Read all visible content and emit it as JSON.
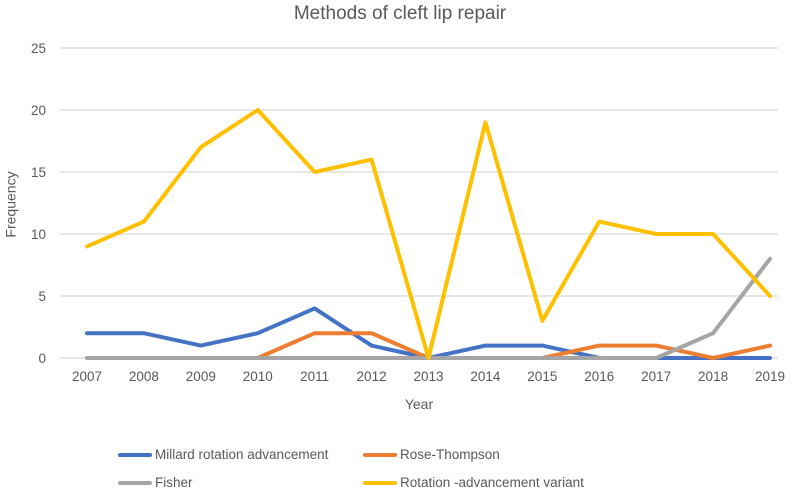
{
  "chart_data": {
    "type": "line",
    "title": "Methods of cleft lip repair",
    "xlabel": "Year",
    "ylabel": "Frequency",
    "categories": [
      "2007",
      "2008",
      "2009",
      "2010",
      "2011",
      "2012",
      "2013",
      "2014",
      "2015",
      "2016",
      "2017",
      "2018",
      "2019"
    ],
    "y_ticks": [
      0,
      5,
      10,
      15,
      20,
      25
    ],
    "ylim": [
      0,
      25
    ],
    "grid": "horizontal",
    "legend_position": "bottom",
    "series": [
      {
        "name": "Millard rotation advancement",
        "color": "#4472C4",
        "values": [
          2,
          2,
          1,
          2,
          4,
          1,
          0,
          1,
          1,
          0,
          0,
          0,
          0
        ]
      },
      {
        "name": "Rose-Thompson",
        "color": "#ED7D31",
        "values": [
          0,
          0,
          0,
          0,
          2,
          2,
          0,
          0,
          0,
          1,
          1,
          0,
          1
        ]
      },
      {
        "name": "Fisher",
        "color": "#A5A5A5",
        "values": [
          0,
          0,
          0,
          0,
          0,
          0,
          0,
          0,
          0,
          0,
          0,
          2,
          8
        ]
      },
      {
        "name": "Rotation -advancement variant",
        "color": "#FFC000",
        "values": [
          9,
          11,
          17,
          20,
          15,
          16,
          0,
          19,
          3,
          11,
          10,
          10,
          5
        ]
      }
    ],
    "colors": {
      "text": "#595959",
      "gridline": "#D9D9D9",
      "background": "#FFFFFF"
    }
  }
}
